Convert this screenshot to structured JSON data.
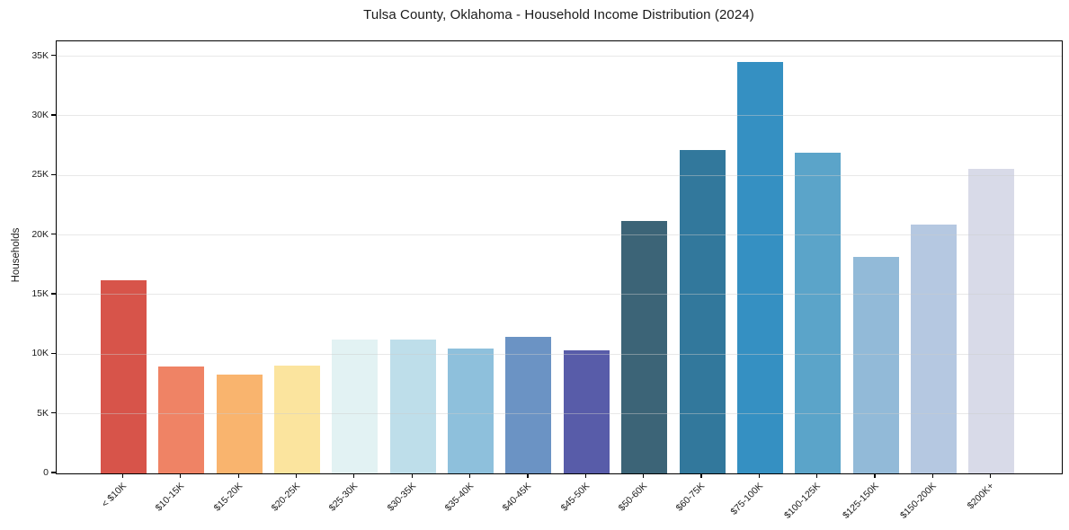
{
  "figure": {
    "background": "#ffffff"
  },
  "chart_data": {
    "type": "bar",
    "title": "Tulsa County, Oklahoma - Household Income Distribution (2024)",
    "xlabel": "",
    "ylabel": "Households",
    "categories": [
      "< $10K",
      "$10-15K",
      "$15-20K",
      "$20-25K",
      "$25-30K",
      "$30-35K",
      "$35-40K",
      "$40-45K",
      "$45-50K",
      "$50-60K",
      "$60-75K",
      "$75-100K",
      "$100-125K",
      "$125-150K",
      "$150-200K",
      "$200K+"
    ],
    "values": [
      16200,
      8950,
      8300,
      9050,
      11250,
      11200,
      10450,
      11450,
      10300,
      21200,
      27150,
      34550,
      26900,
      18150,
      20900,
      25550
    ],
    "bar_colors": [
      "#d7544a",
      "#ef8365",
      "#f9b46e",
      "#fbe49e",
      "#e2f2f3",
      "#bedeea",
      "#8ec0dc",
      "#6b93c4",
      "#585ca9",
      "#3c6477",
      "#32789c",
      "#3590c2",
      "#5ba4c9",
      "#92bad8",
      "#b5c8e1",
      "#d8dae8"
    ],
    "ylim": [
      0,
      36250
    ],
    "ytick_values": [
      0,
      5000,
      10000,
      15000,
      20000,
      25000,
      30000,
      35000
    ],
    "ytick_labels": [
      "0",
      "5K",
      "10K",
      "15K",
      "20K",
      "25K",
      "30K",
      "35K"
    ],
    "grid": "horizontal-only",
    "grid_on_top_of_bars": true,
    "legend": "none",
    "axis_color": "#000000",
    "grid_color": "#e8e8e8",
    "text_color": "#1a1a1a"
  }
}
